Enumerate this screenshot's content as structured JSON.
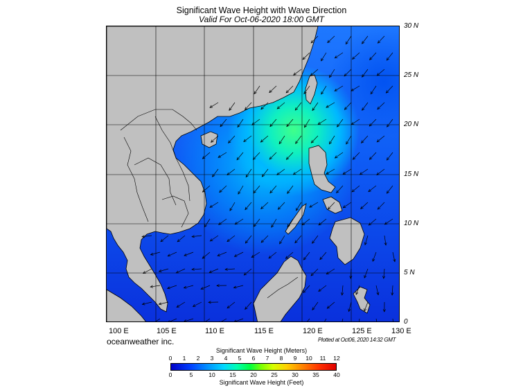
{
  "header": {
    "title": "Significant Wave Height with Wave Direction",
    "subtitle": "Valid For Oct-06-2020 18:00 GMT"
  },
  "map": {
    "lat_labels": [
      "30 N",
      "25 N",
      "20 N",
      "15 N",
      "10 N",
      "5 N",
      "0"
    ],
    "lon_labels": [
      "100 E",
      "105 E",
      "110 E",
      "115 E",
      "120 E",
      "125 E",
      "130 E"
    ],
    "colors": {
      "land": "#c0c0c0",
      "ocean_low": "#0a38e6",
      "ocean_mid": "#00b4ff",
      "ocean_high": "#30ff90",
      "grid": "#000000"
    },
    "dominant_wave_direction": "toward southwest"
  },
  "footer": {
    "brand": "oceanweather inc.",
    "plotted": "Plotted at Oct06, 2020 14:32 GMT"
  },
  "colorbar": {
    "meters_title": "Significant Wave Height (Meters)",
    "feet_title": "Significant Wave Height (Feet)",
    "meters_ticks": [
      "0",
      "1",
      "2",
      "3",
      "4",
      "5",
      "6",
      "7",
      "8",
      "9",
      "10",
      "11",
      "12"
    ],
    "feet_ticks": [
      "0",
      "5",
      "10",
      "15",
      "20",
      "25",
      "30",
      "35",
      "40"
    ]
  }
}
